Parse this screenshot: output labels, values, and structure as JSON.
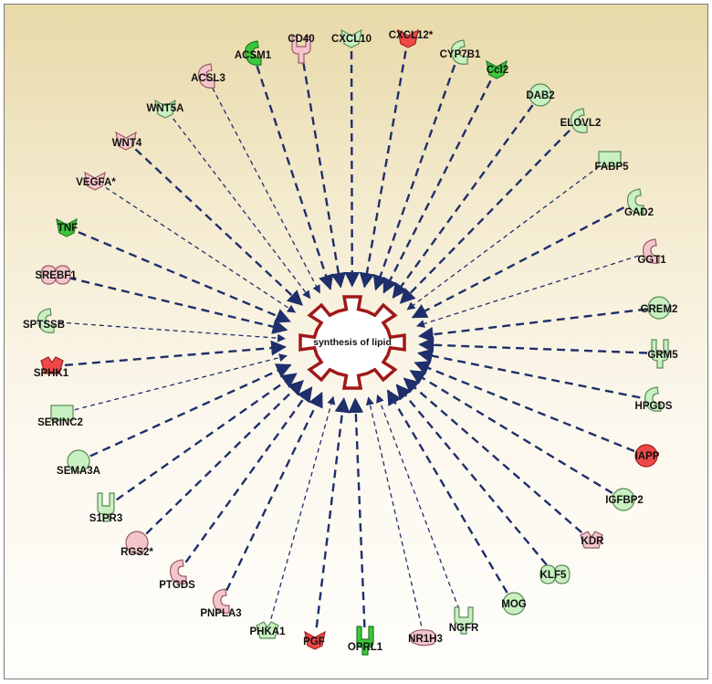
{
  "colors": {
    "edge": "#1f2f6b",
    "center_stroke": "#a01818",
    "up_strong_fill": "#f04848",
    "up_weak_fill": "#f4c6cc",
    "down_strong_fill": "#3cc83c",
    "down_weak_fill": "#c8f0c0"
  },
  "center": {
    "label": "synthesis of lipid",
    "shape": "gear"
  },
  "nodes": [
    {
      "label": "CD40",
      "shape": "receptor",
      "color": "up_weak"
    },
    {
      "label": "CXCL10",
      "shape": "cytokine",
      "color": "down_weak"
    },
    {
      "label": "CXCL12*",
      "shape": "cytokine",
      "color": "up_strong"
    },
    {
      "label": "CYP7B1",
      "shape": "enzyme",
      "color": "down_weak"
    },
    {
      "label": "Ccl2",
      "shape": "cytokine",
      "color": "down_strong"
    },
    {
      "label": "DAB2",
      "shape": "other",
      "color": "down_weak"
    },
    {
      "label": "ELOVL2",
      "shape": "enzyme",
      "color": "down_weak"
    },
    {
      "label": "FABP5",
      "shape": "transporter",
      "color": "down_weak"
    },
    {
      "label": "GAD2",
      "shape": "enzyme",
      "color": "down_weak"
    },
    {
      "label": "GGT1",
      "shape": "enzyme",
      "color": "up_weak"
    },
    {
      "label": "GREM2",
      "shape": "other",
      "color": "down_weak"
    },
    {
      "label": "GRM5",
      "shape": "gpcr",
      "color": "down_weak"
    },
    {
      "label": "HPGDS",
      "shape": "enzyme",
      "color": "down_weak"
    },
    {
      "label": "IAPP",
      "shape": "other",
      "color": "up_strong"
    },
    {
      "label": "IGFBP2",
      "shape": "other",
      "color": "down_weak"
    },
    {
      "label": "KDR",
      "shape": "kinase",
      "color": "up_weak"
    },
    {
      "label": "KLF5",
      "shape": "tf",
      "color": "down_weak"
    },
    {
      "label": "MOG",
      "shape": "other",
      "color": "down_weak"
    },
    {
      "label": "NGFR",
      "shape": "receptor",
      "color": "down_weak"
    },
    {
      "label": "NR1H3",
      "shape": "nuclear",
      "color": "up_weak"
    },
    {
      "label": "OPRL1",
      "shape": "gpcr",
      "color": "down_strong"
    },
    {
      "label": "PGF",
      "shape": "cytokine",
      "color": "up_strong"
    },
    {
      "label": "PHKA1",
      "shape": "kinase",
      "color": "down_weak"
    },
    {
      "label": "PNPLA3",
      "shape": "enzyme",
      "color": "up_weak"
    },
    {
      "label": "PTGDS",
      "shape": "enzyme",
      "color": "up_weak"
    },
    {
      "label": "RGS2*",
      "shape": "other",
      "color": "up_weak"
    },
    {
      "label": "S1PR3",
      "shape": "gpcr",
      "color": "down_weak"
    },
    {
      "label": "SEMA3A",
      "shape": "other",
      "color": "down_weak"
    },
    {
      "label": "SERINC2",
      "shape": "transporter",
      "color": "down_weak"
    },
    {
      "label": "SPHK1",
      "shape": "kinase",
      "color": "up_strong"
    },
    {
      "label": "SPTSSB",
      "shape": "enzyme",
      "color": "down_weak"
    },
    {
      "label": "SREBF1",
      "shape": "tf",
      "color": "up_weak"
    },
    {
      "label": "TNF",
      "shape": "cytokine",
      "color": "down_strong"
    },
    {
      "label": "VEGFA*",
      "shape": "cytokine",
      "color": "up_weak"
    },
    {
      "label": "WNT4",
      "shape": "cytokine",
      "color": "up_weak"
    },
    {
      "label": "WNT5A",
      "shape": "cytokine",
      "color": "down_weak"
    },
    {
      "label": "ACSL3",
      "shape": "enzyme",
      "color": "up_weak"
    },
    {
      "label": "ACSM1",
      "shape": "enzyme",
      "color": "down_strong"
    }
  ]
}
